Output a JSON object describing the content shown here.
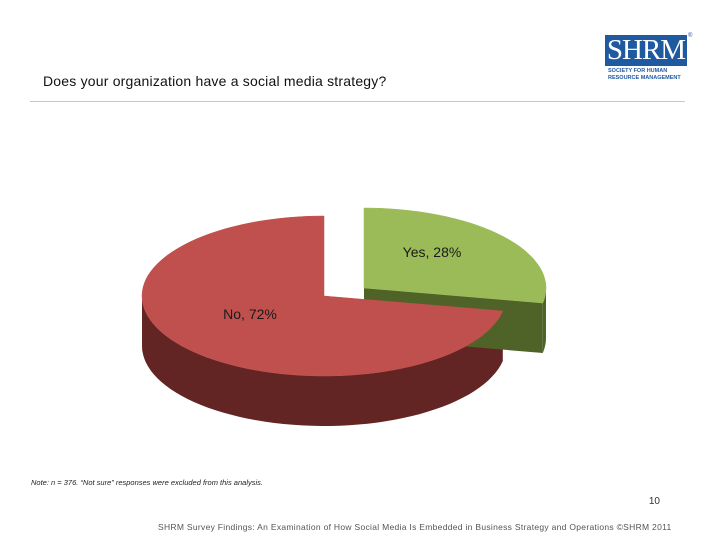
{
  "header": {
    "title": "Does your organization have a social media strategy?"
  },
  "logo": {
    "text": "SHRM",
    "tagline_line1": "SOCIETY FOR HUMAN",
    "tagline_line2": "RESOURCE MANAGEMENT",
    "registered": "®"
  },
  "chart_data": {
    "type": "pie",
    "style": "3d-exploded",
    "categories": [
      "No",
      "Yes"
    ],
    "values": [
      72,
      28
    ],
    "data_labels": [
      "No, 72%",
      "Yes, 28%"
    ],
    "colors": {
      "No": {
        "top": "#c0504d",
        "side": "#632523"
      },
      "Yes": {
        "top": "#9bbb59",
        "side": "#4f6228"
      }
    }
  },
  "note": "Note: n = 376. “Not sure” responses were excluded from this analysis.",
  "page_number": "10",
  "footer": "SHRM Survey Findings: An Examination of How Social Media Is Embedded in Business Strategy and Operations ©SHRM 2011"
}
